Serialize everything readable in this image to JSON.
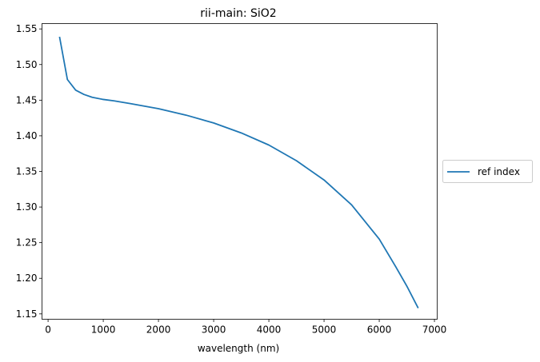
{
  "chart_data": {
    "type": "line",
    "title": "rii-main: SiO2",
    "xlabel": "wavelength (nm)",
    "ylabel": "",
    "xlim": [
      -110,
      7050
    ],
    "ylim": [
      1.1425,
      1.5575
    ],
    "x_ticks": [
      0,
      1000,
      2000,
      3000,
      4000,
      5000,
      6000,
      7000
    ],
    "x_tick_labels": [
      "0",
      "1000",
      "2000",
      "3000",
      "4000",
      "5000",
      "6000",
      "7000"
    ],
    "y_ticks": [
      1.15,
      1.2,
      1.25,
      1.3,
      1.35,
      1.4,
      1.45,
      1.5,
      1.55
    ],
    "y_tick_labels": [
      "1.15",
      "1.20",
      "1.25",
      "1.30",
      "1.35",
      "1.40",
      "1.45",
      "1.50",
      "1.55"
    ],
    "grid": false,
    "legend_position": "center-right-outside",
    "series": [
      {
        "name": "ref index",
        "color": "#1f77b4",
        "x": [
          210,
          350,
          500,
          650,
          800,
          1000,
          1200,
          1500,
          2000,
          2500,
          3000,
          3500,
          4000,
          4500,
          5000,
          5500,
          6000,
          6300,
          6500,
          6700
        ],
        "y": [
          1.538,
          1.479,
          1.464,
          1.458,
          1.454,
          1.451,
          1.449,
          1.445,
          1.438,
          1.429,
          1.418,
          1.404,
          1.387,
          1.365,
          1.338,
          1.303,
          1.255,
          1.216,
          1.189,
          1.159
        ]
      }
    ]
  }
}
